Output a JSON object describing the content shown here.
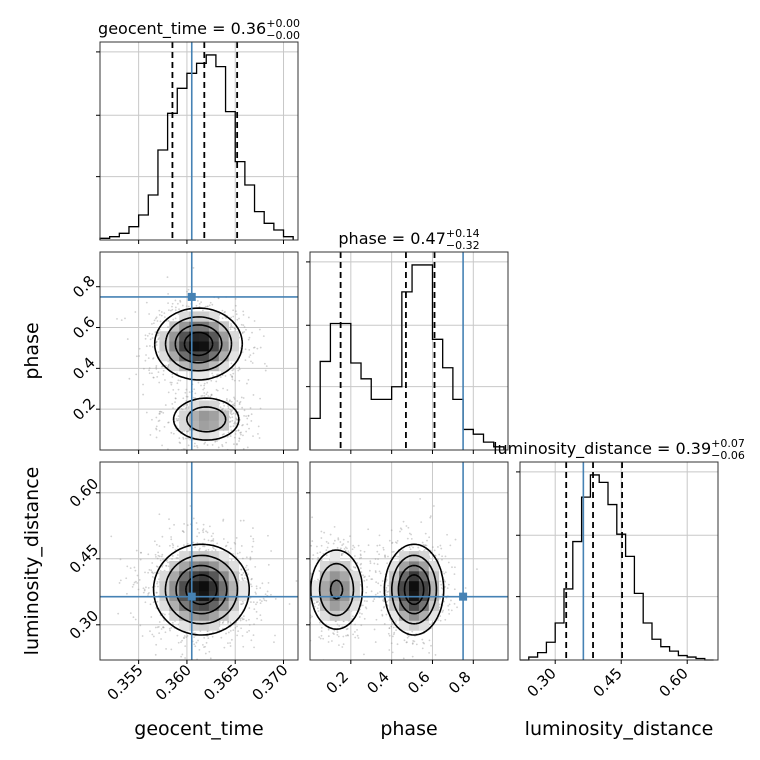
{
  "chart_data": {
    "type": "corner",
    "parameters": [
      "geocent_time",
      "phase",
      "luminosity_distance"
    ],
    "truths": {
      "geocent_time": 0.3605,
      "phase": 0.75,
      "luminosity_distance": 0.364
    },
    "titles": [
      {
        "name": "geocent_time",
        "median": "0.36",
        "plus": "+0.00",
        "minus": "−0.00"
      },
      {
        "name": "phase",
        "median": "0.47",
        "plus": "+0.14",
        "minus": "−0.32"
      },
      {
        "name": "luminosity_distance",
        "median": "0.39",
        "plus": "+0.07",
        "minus": "−0.06"
      }
    ],
    "axes": {
      "geocent_time": {
        "label": "geocent_time",
        "range": [
          0.351,
          0.3715
        ],
        "ticks": [
          0.355,
          0.36,
          0.365,
          0.37
        ],
        "tick_labels": [
          "0.355",
          "0.360",
          "0.365",
          "0.370"
        ]
      },
      "phase": {
        "label": "phase",
        "range": [
          0.0,
          0.97
        ],
        "ticks": [
          0.2,
          0.4,
          0.6,
          0.8
        ],
        "tick_labels": [
          "0.2",
          "0.4",
          "0.6",
          "0.8"
        ]
      },
      "luminosity_distance": {
        "label": "luminosity_distance",
        "range": [
          0.22,
          0.67
        ],
        "ticks": [
          0.3,
          0.45,
          0.6
        ],
        "tick_labels": [
          "0.30",
          "0.45",
          "0.60"
        ]
      }
    },
    "histograms": {
      "geocent_time": {
        "edges": [
          0.351,
          0.352,
          0.353,
          0.354,
          0.355,
          0.356,
          0.357,
          0.358,
          0.359,
          0.36,
          0.361,
          0.362,
          0.363,
          0.364,
          0.365,
          0.366,
          0.367,
          0.368,
          0.369,
          0.37,
          0.371
        ],
        "counts": [
          1,
          2,
          4,
          8,
          15,
          27,
          54,
          76,
          91,
          100,
          106,
          111,
          104,
          77,
          47,
          33,
          17,
          10,
          6,
          2
        ],
        "quantiles": [
          0.3585,
          0.3618,
          0.3652
        ]
      },
      "phase": {
        "edges": [
          0.0,
          0.05,
          0.1,
          0.15,
          0.2,
          0.25,
          0.3,
          0.35,
          0.4,
          0.45,
          0.5,
          0.55,
          0.6,
          0.65,
          0.7,
          0.75,
          0.8,
          0.85,
          0.9,
          0.95
        ],
        "counts": [
          20,
          56,
          80,
          80,
          55,
          45,
          32,
          32,
          40,
          100,
          117,
          117,
          70,
          52,
          32,
          13,
          10,
          5,
          2
        ],
        "quantiles": [
          0.15,
          0.47,
          0.61
        ]
      },
      "luminosity_distance": {
        "edges": [
          0.22,
          0.24,
          0.26,
          0.28,
          0.3,
          0.32,
          0.34,
          0.36,
          0.38,
          0.4,
          0.42,
          0.44,
          0.46,
          0.48,
          0.5,
          0.52,
          0.54,
          0.56,
          0.58,
          0.6,
          0.62,
          0.64,
          0.66
        ],
        "counts": [
          0,
          2,
          5,
          12,
          25,
          48,
          80,
          110,
          125,
          120,
          105,
          85,
          70,
          45,
          25,
          14,
          9,
          6,
          3,
          2,
          1,
          0
        ],
        "quantiles": [
          0.325,
          0.386,
          0.452
        ]
      }
    },
    "density_2d": [
      {
        "x": "geocent_time",
        "y": "phase",
        "modes": [
          {
            "x": 0.3612,
            "y": 0.52,
            "sx": 0.0022,
            "sy": 0.085,
            "w": 0.7
          },
          {
            "x": 0.362,
            "y": 0.15,
            "sx": 0.002,
            "sy": 0.06,
            "w": 0.35
          }
        ]
      },
      {
        "x": "geocent_time",
        "y": "luminosity_distance",
        "modes": [
          {
            "x": 0.3615,
            "y": 0.38,
            "sx": 0.0024,
            "sy": 0.05,
            "w": 1.0
          }
        ]
      },
      {
        "x": "phase",
        "y": "luminosity_distance",
        "modes": [
          {
            "x": 0.13,
            "y": 0.38,
            "sx": 0.07,
            "sy": 0.05,
            "w": 0.45
          },
          {
            "x": 0.51,
            "y": 0.38,
            "sx": 0.07,
            "sy": 0.05,
            "w": 0.75
          }
        ]
      }
    ],
    "colors": {
      "truth": "#4682b4",
      "hist": "#000000",
      "grid": "#c8c8c8",
      "contour": "#000000"
    }
  }
}
